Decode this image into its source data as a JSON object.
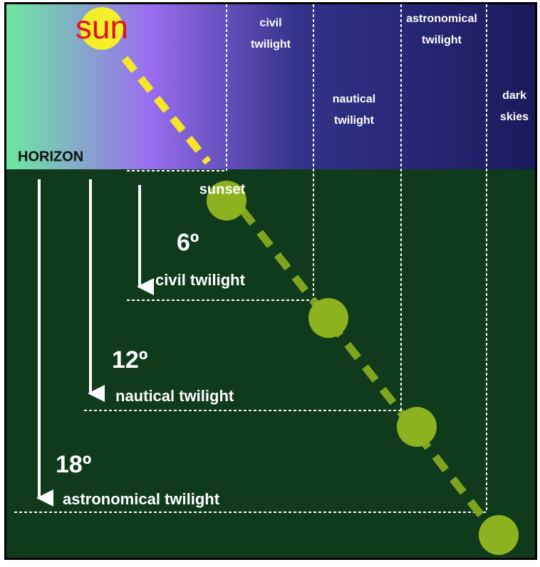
{
  "sky": {
    "sun": "sun",
    "horizon": "HORIZON",
    "zones": [
      [
        "civil",
        "twilight"
      ],
      [
        "nautical",
        "twilight"
      ],
      [
        "astronomical",
        "twilight"
      ],
      [
        "dark",
        "skies"
      ]
    ]
  },
  "ground": {
    "sunset": "sunset",
    "levels": [
      {
        "degrees": "6º",
        "label": "civil twilight"
      },
      {
        "degrees": "12º",
        "label": "nautical twilight"
      },
      {
        "degrees": "18º",
        "label": "astronomical twilight"
      }
    ]
  }
}
